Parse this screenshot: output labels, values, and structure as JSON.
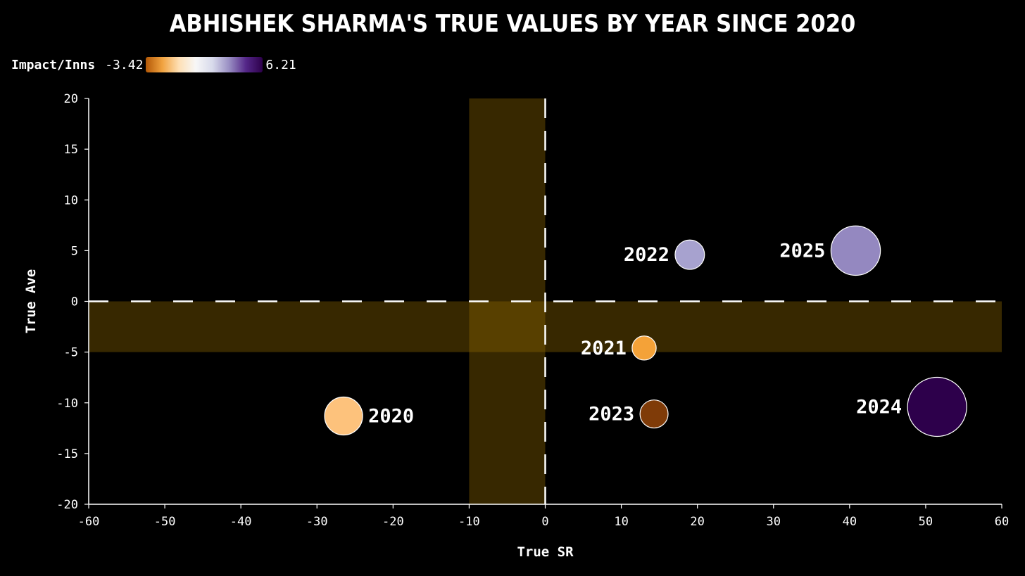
{
  "chart_data": {
    "type": "scatter",
    "title": "ABHISHEK SHARMA'S TRUE VALUES BY YEAR SINCE 2020",
    "xlabel": "True SR",
    "ylabel": "True Ave",
    "xlim": [
      -60,
      60
    ],
    "ylim": [
      -20,
      20
    ],
    "xticks": [
      "-60",
      "-50",
      "-40",
      "-30",
      "-20",
      "-10",
      "0",
      "10",
      "20",
      "30",
      "40",
      "50",
      "60"
    ],
    "yticks": [
      "20",
      "15",
      "10",
      "5",
      "0",
      "-5",
      "-10",
      "-15",
      "-20"
    ],
    "reference_lines": {
      "x": 0,
      "y": 0,
      "style": "dashed",
      "color": "#ffffff"
    },
    "highlight_bands": [
      {
        "axis": "x",
        "from": -10,
        "to": 0,
        "color": "#8a6400"
      },
      {
        "axis": "y",
        "from": -5,
        "to": 0,
        "color": "#8a6400"
      }
    ],
    "color_legend": {
      "title": "Impact/Inns",
      "min": "-3.42",
      "max": "6.21"
    },
    "points": [
      {
        "label": "2020",
        "x": -26.5,
        "y": -11.3,
        "color": "#fdc27c",
        "label_side": "right"
      },
      {
        "label": "2021",
        "x": 13.0,
        "y": -4.6,
        "color": "#f4a238",
        "label_side": "left"
      },
      {
        "label": "2022",
        "x": 19.0,
        "y": 4.6,
        "color": "#a7a2cf",
        "label_side": "left"
      },
      {
        "label": "2023",
        "x": 14.3,
        "y": -11.1,
        "color": "#7f3b08",
        "label_side": "left"
      },
      {
        "label": "2024",
        "x": 51.5,
        "y": -10.4,
        "color": "#2d004b",
        "label_side": "left"
      },
      {
        "label": "2025",
        "x": 40.8,
        "y": 5.0,
        "color": "#9488c0",
        "label_side": "left"
      }
    ]
  }
}
